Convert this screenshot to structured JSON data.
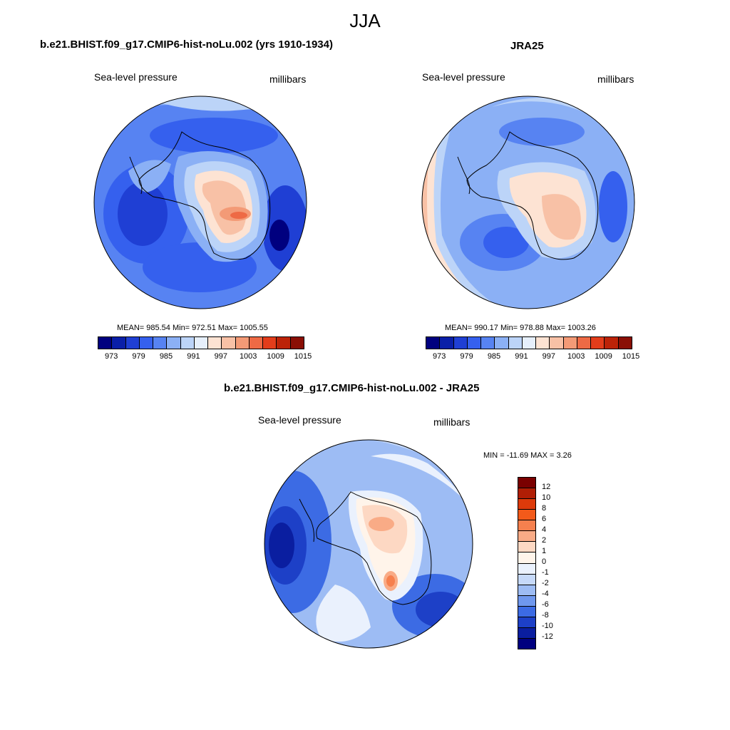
{
  "figure_title": "JJA",
  "panels": [
    {
      "title": "b.e21.BHIST.f09_g17.CMIP6-hist-noLu.002 (yrs 1910-1934)",
      "left_label": "Sea-level pressure",
      "right_label": "millibars",
      "stats": "MEAN= 985.54  Min= 972.51  Max= 1005.55",
      "colorbar_ticks": [
        "973",
        "979",
        "985",
        "991",
        "997",
        "1003",
        "1009",
        "1015"
      ]
    },
    {
      "title": "JRA25",
      "left_label": "Sea-level pressure",
      "right_label": "millibars",
      "stats": "MEAN= 990.17  Min= 978.88  Max= 1003.26",
      "colorbar_ticks": [
        "973",
        "979",
        "985",
        "991",
        "997",
        "1003",
        "1009",
        "1015"
      ]
    },
    {
      "title": "b.e21.BHIST.f09_g17.CMIP6-hist-noLu.002 - JRA25",
      "left_label": "Sea-level pressure",
      "right_label": "millibars",
      "stats": "MIN = -11.69 MAX =   3.26",
      "colorbar_ticks": [
        "12",
        "10",
        "8",
        "6",
        "4",
        "2",
        "1",
        "0",
        "-1",
        "-2",
        "-4",
        "-6",
        "-8",
        "-10",
        "-12"
      ]
    }
  ],
  "colors": {
    "seq": [
      "#00007f",
      "#0a1fa8",
      "#1f3fd4",
      "#3560ee",
      "#5783f2",
      "#8bb0f5",
      "#bcd4f8",
      "#e6effb",
      "#fde3d3",
      "#f8c1a6",
      "#f39a76",
      "#ee6a45",
      "#e33d1b",
      "#bc2308",
      "#8a0f05"
    ],
    "div": [
      "#7a0000",
      "#b01e05",
      "#dd3a0a",
      "#f35a1a",
      "#f6804e",
      "#f9ab86",
      "#fdd8c3",
      "#fff4ea",
      "#eaf1fd",
      "#c6d9f9",
      "#9dbcf4",
      "#6f98ee",
      "#3c6be4",
      "#1d40c7",
      "#0a1ea0",
      "#00007f"
    ]
  }
}
